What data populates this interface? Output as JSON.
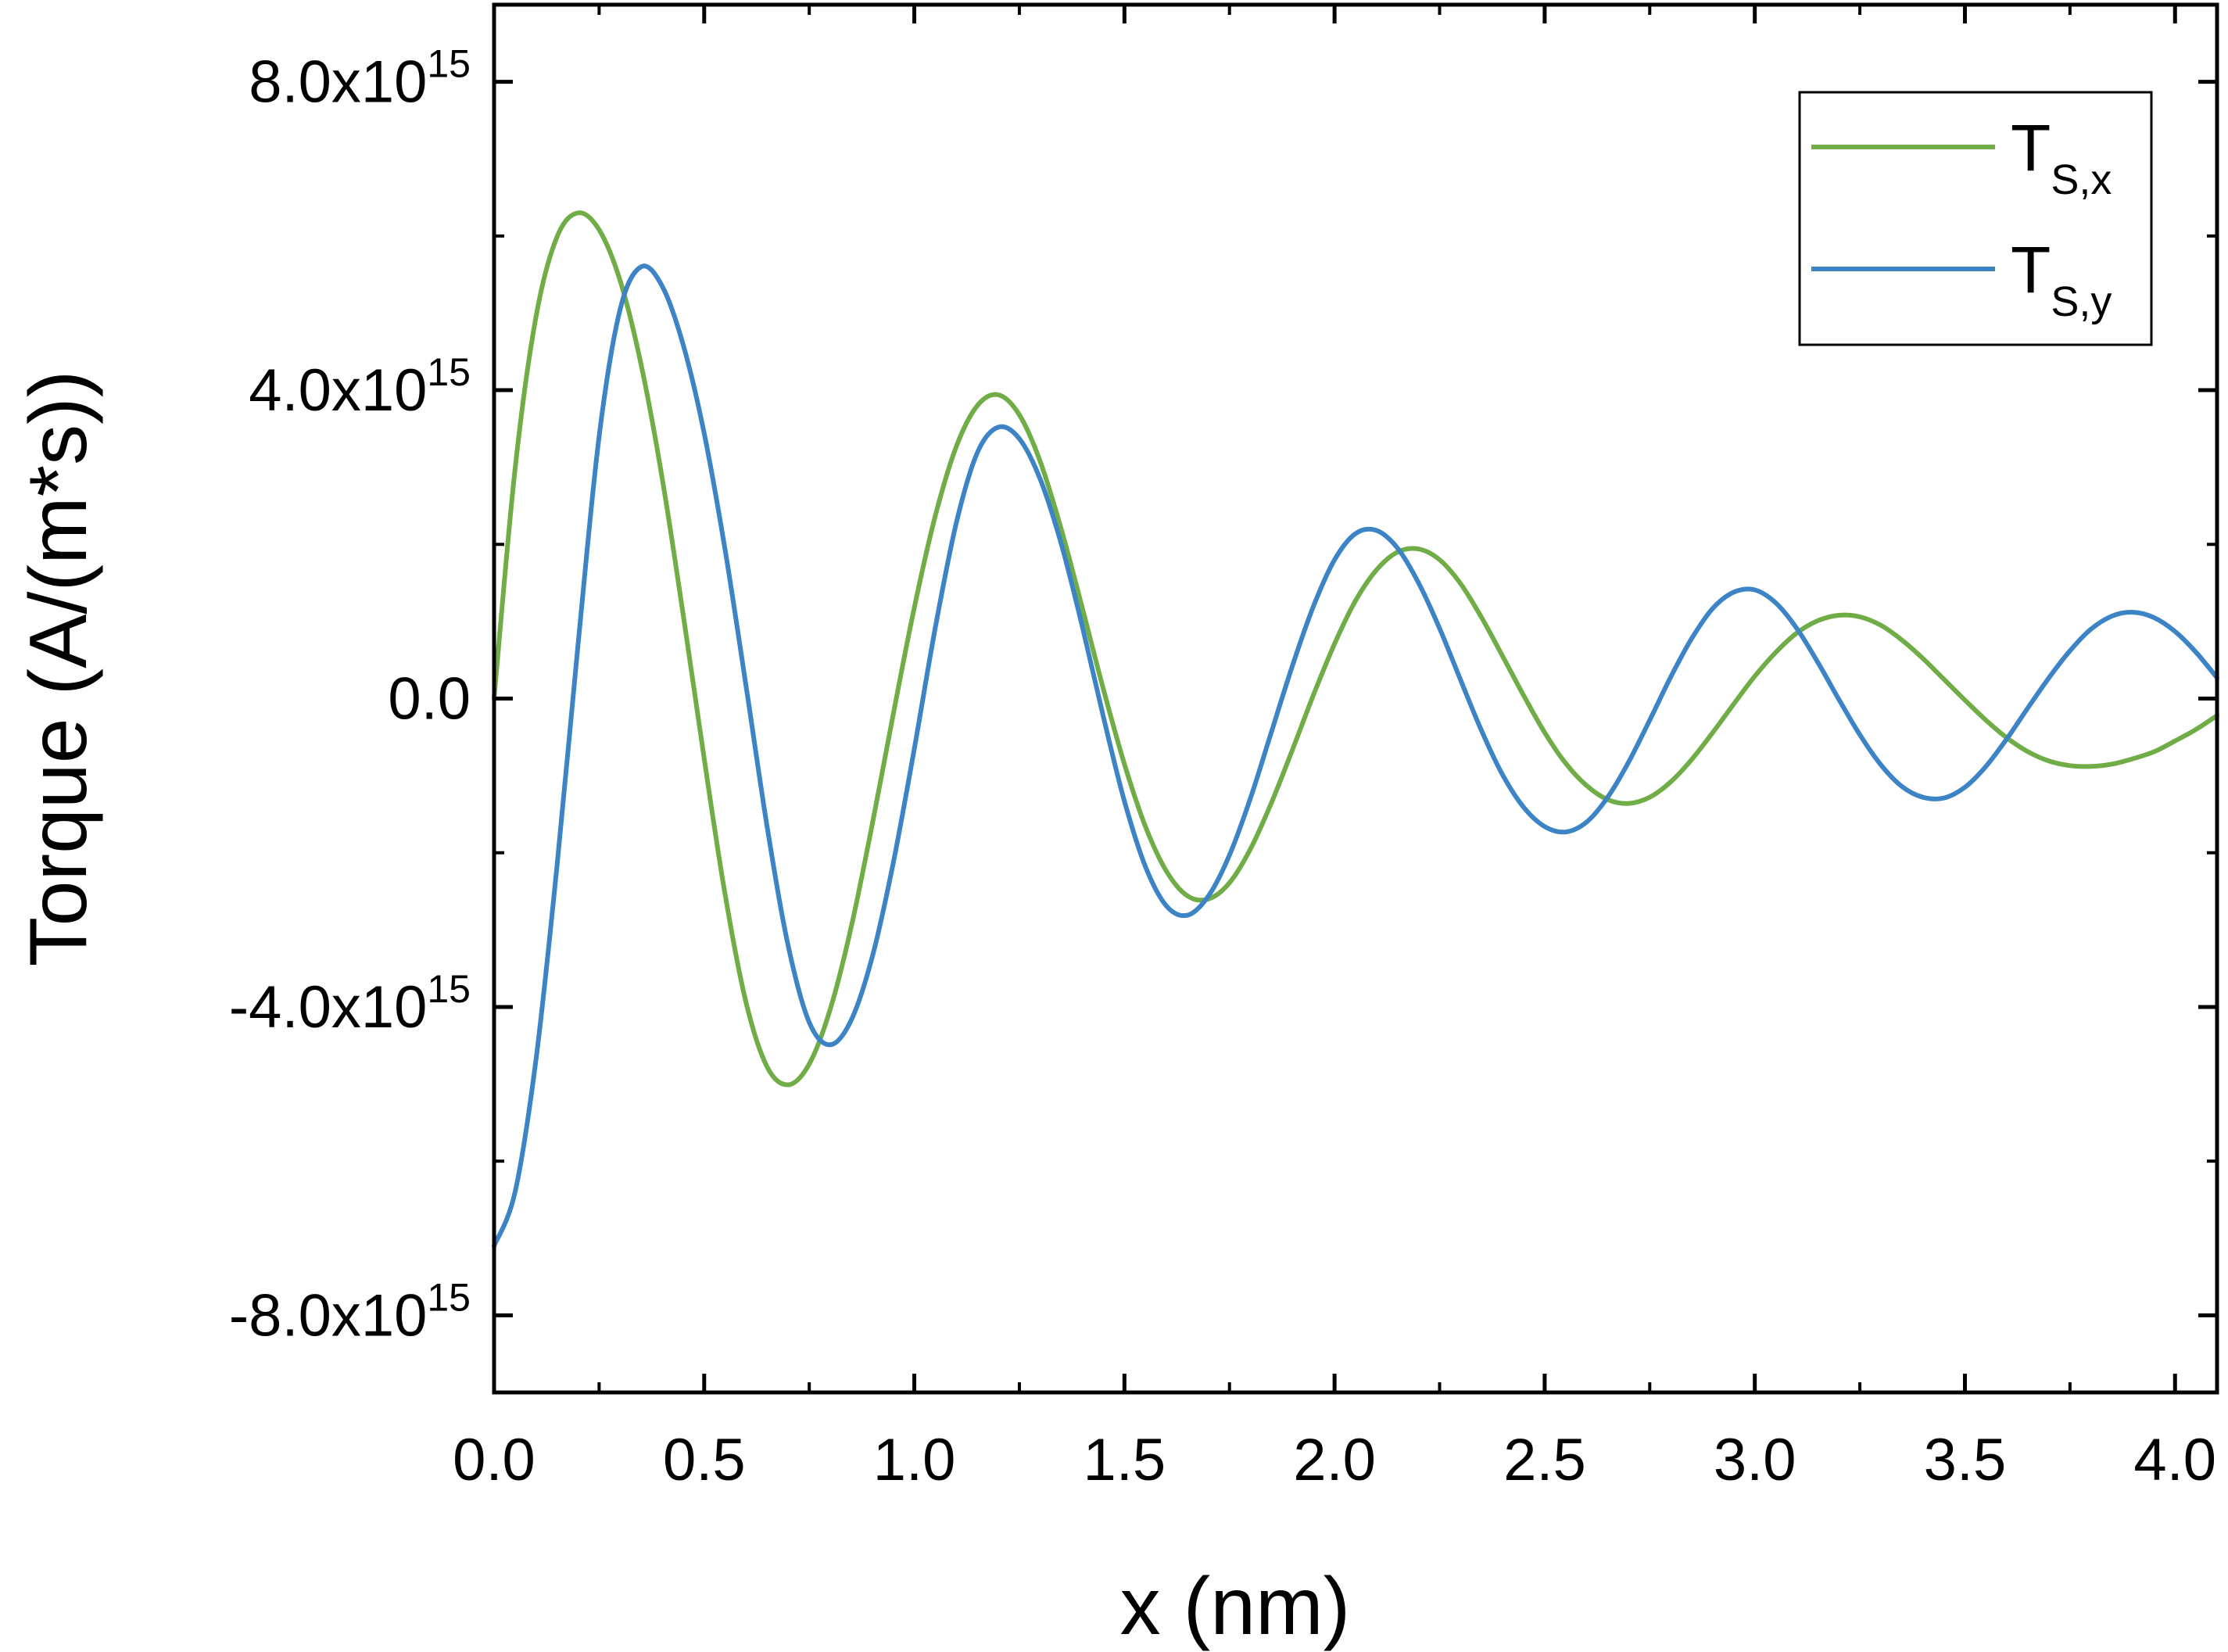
{
  "chart_data": {
    "type": "line",
    "title": "",
    "xlabel": "x (nm)",
    "ylabel": "Torque (A/(m*s))",
    "xlim": [
      0.0,
      4.1
    ],
    "ylim": [
      -9000000000000000.0,
      9000000000000000.0
    ],
    "grid": false,
    "legend_position": "top-right",
    "x_ticks": [
      0.0,
      0.5,
      1.0,
      1.5,
      2.0,
      2.5,
      3.0,
      3.5,
      4.0
    ],
    "x_tick_labels": [
      "0.0",
      "0.5",
      "1.0",
      "1.5",
      "2.0",
      "2.5",
      "3.0",
      "3.5",
      "4.0"
    ],
    "y_ticks": [
      {
        "value": 8000000000000000.0,
        "base": "8.0x10",
        "exp": "15"
      },
      {
        "value": 4000000000000000.0,
        "base": "4.0x10",
        "exp": "15"
      },
      {
        "value": 0.0,
        "base": "0.0",
        "exp": ""
      },
      {
        "value": -4000000000000000.0,
        "base": "-4.0x10",
        "exp": "15"
      },
      {
        "value": -8000000000000000.0,
        "base": "-8.0x10",
        "exp": "15"
      }
    ],
    "x": [
      0.0,
      0.05,
      0.1,
      0.15,
      0.2,
      0.25,
      0.3,
      0.35,
      0.4,
      0.45,
      0.5,
      0.55,
      0.6,
      0.65,
      0.7,
      0.75,
      0.8,
      0.85,
      0.9,
      0.95,
      1.0,
      1.05,
      1.1,
      1.15,
      1.2,
      1.25,
      1.3,
      1.35,
      1.4,
      1.45,
      1.5,
      1.55,
      1.6,
      1.65,
      1.7,
      1.75,
      1.8,
      1.85,
      1.9,
      1.95,
      2.0,
      2.05,
      2.1,
      2.15,
      2.2,
      2.25,
      2.3,
      2.35,
      2.4,
      2.45,
      2.5,
      2.55,
      2.6,
      2.65,
      2.7,
      2.75,
      2.8,
      2.85,
      2.9,
      2.95,
      3.0,
      3.05,
      3.1,
      3.15,
      3.2,
      3.25,
      3.3,
      3.35,
      3.4,
      3.45,
      3.5,
      3.55,
      3.6,
      3.65,
      3.7,
      3.75,
      3.8,
      3.85,
      3.9,
      3.95,
      4.0,
      4.05,
      4.1
    ],
    "series": [
      {
        "name": "T",
        "subscript": "S,x",
        "color": "#70ad47",
        "values": [
          0.0,
          2980000000000000.0,
          4960000000000000.0,
          5990000000000000.0,
          6300000000000000.0,
          6080000000000000.0,
          5420000000000000.0,
          4330000000000000.0,
          2860000000000000.0,
          1090000000000000.0,
          -780000000000000.0,
          -2550000000000000.0,
          -3950000000000000.0,
          -4780000000000000.0,
          -5010000000000000.0,
          -4740000000000000.0,
          -4030000000000000.0,
          -2960000000000000.0,
          -1630000000000000.0,
          -200000000000000.0,
          1180000000000000.0,
          2370000000000000.0,
          3270000000000000.0,
          3800000000000000.0,
          3940000000000000.0,
          3680000000000000.0,
          3070000000000000.0,
          2190000000000000.0,
          1170000000000000.0,
          120000000000000.0,
          -850000000000000.0,
          -1660000000000000.0,
          -2240000000000000.0,
          -2560000000000000.0,
          -2600000000000000.0,
          -2390000000000000.0,
          -1950000000000000.0,
          -1350000000000000.0,
          -660000000000000.0,
          50000000000000.0,
          710000000000000.0,
          1270000000000000.0,
          1670000000000000.0,
          1900000000000000.0,
          1940000000000000.0,
          1800000000000000.0,
          1490000000000000.0,
          1050000000000000.0,
          550000000000000.0,
          40000000000000.0,
          -440000000000000.0,
          -840000000000000.0,
          -1130000000000000.0,
          -1310000000000000.0,
          -1360000000000000.0,
          -1280000000000000.0,
          -1080000000000000.0,
          -790000000000000.0,
          -440000000000000.0,
          -70000000000000.0,
          290000000000000.0,
          600000000000000.0,
          850000000000000.0,
          1010000000000000.0,
          1080000000000000.0,
          1060000000000000.0,
          950000000000000.0,
          760000000000000.0,
          520000000000000.0,
          250000000000000.0,
          -20000000000000.0,
          -280000000000000.0,
          -510000000000000.0,
          -690000000000000.0,
          -810000000000000.0,
          -870000000000000.0,
          -880000000000000.0,
          -850000000000000.0,
          -780000000000000.0,
          -690000000000000.0,
          -550000000000000.0,
          -400000000000000.0,
          -220000000000000.0
        ]
      },
      {
        "name": "T",
        "subscript": "S,y",
        "color": "#3c84c6",
        "values": [
          -7100000000000000.0,
          -6400000000000000.0,
          -4670000000000000.0,
          -2160000000000000.0,
          710000000000000.0,
          3400000000000000.0,
          5050000000000000.0,
          5600000000000000.0,
          5350000000000000.0,
          4590000000000000.0,
          3440000000000000.0,
          1920000000000000.0,
          150000000000000.0,
          -1670000000000000.0,
          -3210000000000000.0,
          -4200000000000000.0,
          -4490000000000000.0,
          -4170000000000000.0,
          -3350000000000000.0,
          -2130000000000000.0,
          -650000000000000.0,
          920000000000000.0,
          2280000000000000.0,
          3190000000000000.0,
          3520000000000000.0,
          3370000000000000.0,
          2840000000000000.0,
          2000000000000000.0,
          930000000000000.0,
          -240000000000000.0,
          -1330000000000000.0,
          -2180000000000000.0,
          -2690000000000000.0,
          -2810000000000000.0,
          -2560000000000000.0,
          -2030000000000000.0,
          -1290000000000000.0,
          -430000000000000.0,
          430000000000000.0,
          1200000000000000.0,
          1800000000000000.0,
          2140000000000000.0,
          2180000000000000.0,
          1950000000000000.0,
          1500000000000000.0,
          910000000000000.0,
          240000000000000.0,
          -420000000000000.0,
          -990000000000000.0,
          -1410000000000000.0,
          -1660000000000000.0,
          -1730000000000000.0,
          -1600000000000000.0,
          -1280000000000000.0,
          -820000000000000.0,
          -280000000000000.0,
          280000000000000.0,
          780000000000000.0,
          1170000000000000.0,
          1380000000000000.0,
          1410000000000000.0,
          1240000000000000.0,
          910000000000000.0,
          470000000000000.0,
          -10000000000000.0,
          -470000000000000.0,
          -860000000000000.0,
          -1140000000000000.0,
          -1280000000000000.0,
          -1290000000000000.0,
          -1150000000000000.0,
          -880000000000000.0,
          -520000000000000.0,
          -120000000000000.0,
          270000000000000.0,
          620000000000000.0,
          900000000000000.0,
          1070000000000000.0,
          1120000000000000.0,
          1050000000000000.0,
          870000000000000.0,
          600000000000000.0,
          270000000000000.0
        ]
      }
    ]
  }
}
